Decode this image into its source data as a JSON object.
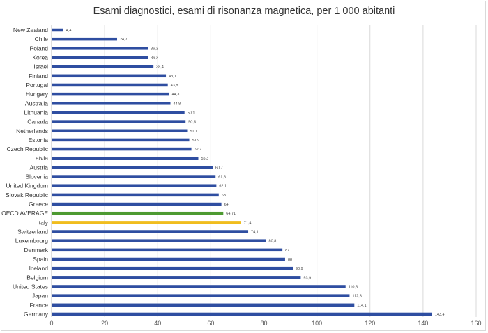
{
  "chart_data": {
    "type": "bar",
    "orientation": "horizontal",
    "title": "Esami diagnostici, esami di risonanza magnetica, per 1 000 abitanti",
    "xlim": [
      0,
      160
    ],
    "x_ticks": [
      "0",
      "20",
      "40",
      "60",
      "80",
      "100",
      "120",
      "140",
      "160"
    ],
    "grid": true,
    "colors": {
      "default": "#2f4ea1",
      "oecd": "#4d9a31",
      "italy": "#f0bd1e"
    },
    "bars": [
      {
        "category": "New Zealand",
        "value": 4.4,
        "label": "4,4",
        "color": "default"
      },
      {
        "category": "Chile",
        "value": 24.7,
        "label": "24,7",
        "color": "default"
      },
      {
        "category": "Poland",
        "value": 36.3,
        "label": "36,3",
        "color": "default"
      },
      {
        "category": "Korea",
        "value": 36.3,
        "label": "36,3",
        "color": "default"
      },
      {
        "category": "Israel",
        "value": 38.4,
        "label": "38,4",
        "color": "default"
      },
      {
        "category": "Finland",
        "value": 43.1,
        "label": "43,1",
        "color": "default"
      },
      {
        "category": "Portugal",
        "value": 43.8,
        "label": "43,8",
        "color": "default"
      },
      {
        "category": "Hungary",
        "value": 44.3,
        "label": "44,3",
        "color": "default"
      },
      {
        "category": "Australia",
        "value": 44.8,
        "label": "44,8",
        "color": "default"
      },
      {
        "category": "Lithuania",
        "value": 50.1,
        "label": "50,1",
        "color": "default"
      },
      {
        "category": "Canada",
        "value": 50.5,
        "label": "50,5",
        "color": "default"
      },
      {
        "category": "Netherlands",
        "value": 51.1,
        "label": "51,1",
        "color": "default"
      },
      {
        "category": "Estonia",
        "value": 51.9,
        "label": "51,9",
        "color": "default"
      },
      {
        "category": "Czech Republic",
        "value": 52.7,
        "label": "52,7",
        "color": "default"
      },
      {
        "category": "Latvia",
        "value": 55.3,
        "label": "55,3",
        "color": "default"
      },
      {
        "category": "Austria",
        "value": 60.7,
        "label": "60,7",
        "color": "default"
      },
      {
        "category": "Slovenia",
        "value": 61.8,
        "label": "61,8",
        "color": "default"
      },
      {
        "category": "United Kingdom",
        "value": 62.1,
        "label": "62,1",
        "color": "default"
      },
      {
        "category": "Slovak Republic",
        "value": 63,
        "label": "63",
        "color": "default"
      },
      {
        "category": "Greece",
        "value": 64,
        "label": "64",
        "color": "default"
      },
      {
        "category": "OECD AVERAGE",
        "value": 64.71,
        "label": "64,71",
        "color": "oecd"
      },
      {
        "category": "Italy",
        "value": 71.4,
        "label": "71,4",
        "color": "italy"
      },
      {
        "category": "Switzerland",
        "value": 74.1,
        "label": "74,1",
        "color": "default"
      },
      {
        "category": "Luxembourg",
        "value": 80.8,
        "label": "80,8",
        "color": "default"
      },
      {
        "category": "Denmark",
        "value": 87,
        "label": "87",
        "color": "default"
      },
      {
        "category": "Spain",
        "value": 88,
        "label": "88",
        "color": "default"
      },
      {
        "category": "Iceland",
        "value": 90.9,
        "label": "90,9",
        "color": "default"
      },
      {
        "category": "Belgium",
        "value": 93.9,
        "label": "93,9",
        "color": "default"
      },
      {
        "category": "United States",
        "value": 110.8,
        "label": "110,8",
        "color": "default"
      },
      {
        "category": "Japan",
        "value": 112.3,
        "label": "112,3",
        "color": "default"
      },
      {
        "category": "France",
        "value": 114.1,
        "label": "114,1",
        "color": "default"
      },
      {
        "category": "Germany",
        "value": 143.4,
        "label": "143,4",
        "color": "default"
      }
    ]
  }
}
